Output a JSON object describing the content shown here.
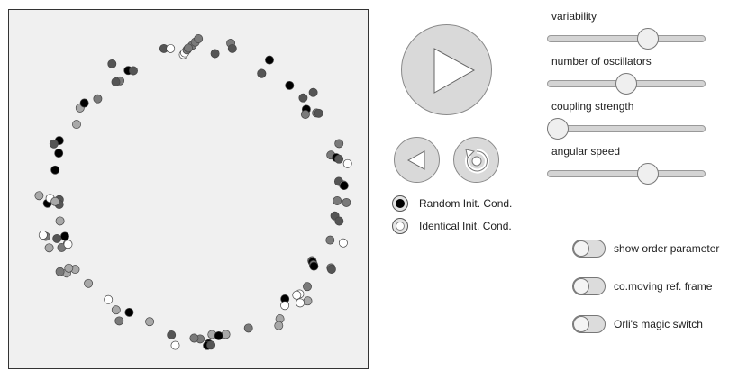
{
  "controls": {
    "play_icon": "play-icon",
    "back_icon": "step-back-icon",
    "reset_icon": "reset-icon"
  },
  "init_conditions": {
    "options": [
      {
        "label": "Random Init. Cond.",
        "selected": true
      },
      {
        "label": "Identical Init. Cond.",
        "selected": false
      }
    ]
  },
  "sliders": [
    {
      "label": "variability",
      "value": 0.66
    },
    {
      "label": "number of oscillators",
      "value": 0.5
    },
    {
      "label": "coupling strength",
      "value": 0.0
    },
    {
      "label": "angular speed",
      "value": 0.66
    }
  ],
  "toggles": [
    {
      "label": "show order parameter",
      "on": false
    },
    {
      "label": "co.moving ref. frame",
      "on": false
    },
    {
      "label": "Orli's magic switch",
      "on": false
    }
  ],
  "colors": {
    "oscillator_shades": [
      "#000000",
      "#555555",
      "#7a7a7a",
      "#a8a8a8",
      "#ffffff"
    ]
  },
  "oscillators": {
    "count": 100
  }
}
